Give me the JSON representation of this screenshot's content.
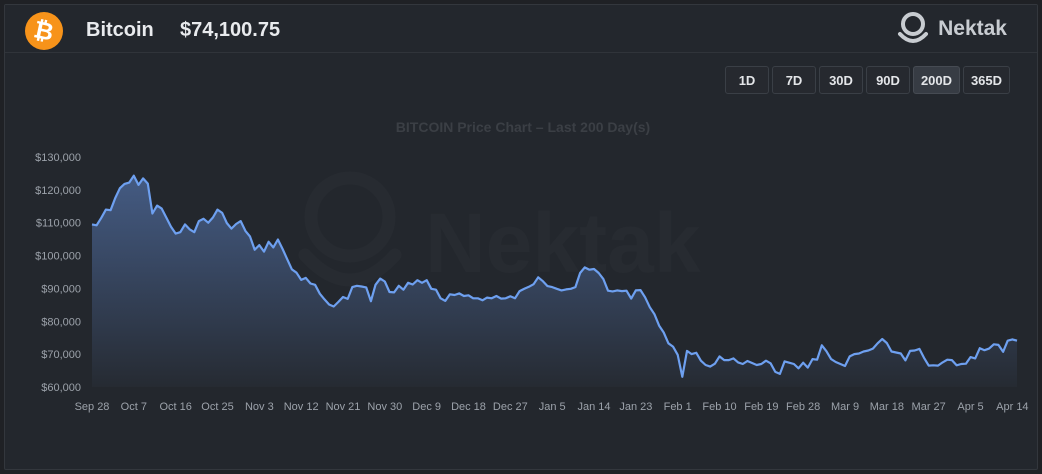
{
  "header": {
    "coin_name": "Bitcoin",
    "coin_symbol_glyph": "₿",
    "price": "$74,100.75",
    "logo_text": "Nektak"
  },
  "range_buttons": [
    {
      "label": "1D",
      "active": false
    },
    {
      "label": "7D",
      "active": false
    },
    {
      "label": "30D",
      "active": false
    },
    {
      "label": "90D",
      "active": false
    },
    {
      "label": "200D",
      "active": true
    },
    {
      "label": "365D",
      "active": false
    }
  ],
  "colors": {
    "accent_orange": "#f7931a",
    "line": "#6ea0f0",
    "background": "#23272d"
  },
  "chart_data": {
    "type": "area",
    "title": "BITCOIN Price Chart – Last 200 Day(s)",
    "watermark": "Nektak",
    "xlabel": "",
    "ylabel": "",
    "ylim": [
      60000,
      130000
    ],
    "yticks": [
      {
        "value": 130000,
        "label": "$130,000"
      },
      {
        "value": 120000,
        "label": "$120,000"
      },
      {
        "value": 110000,
        "label": "$110,000"
      },
      {
        "value": 100000,
        "label": "$100,000"
      },
      {
        "value": 90000,
        "label": "$90,000"
      },
      {
        "value": 80000,
        "label": "$80,000"
      },
      {
        "value": 70000,
        "label": "$70,000"
      },
      {
        "value": 60000,
        "label": "$60,000"
      }
    ],
    "xrange": [
      "2025-09-28",
      "2026-04-15"
    ],
    "xticks": [
      {
        "date": "2025-09-28",
        "label": "Sep 28"
      },
      {
        "date": "2025-10-07",
        "label": "Oct 7"
      },
      {
        "date": "2025-10-16",
        "label": "Oct 16"
      },
      {
        "date": "2025-10-25",
        "label": "Oct 25"
      },
      {
        "date": "2025-11-03",
        "label": "Nov 3"
      },
      {
        "date": "2025-11-12",
        "label": "Nov 12"
      },
      {
        "date": "2025-11-21",
        "label": "Nov 21"
      },
      {
        "date": "2025-11-30",
        "label": "Nov 30"
      },
      {
        "date": "2025-12-09",
        "label": "Dec 9"
      },
      {
        "date": "2025-12-18",
        "label": "Dec 18"
      },
      {
        "date": "2025-12-27",
        "label": "Dec 27"
      },
      {
        "date": "2026-01-05",
        "label": "Jan 5"
      },
      {
        "date": "2026-01-14",
        "label": "Jan 14"
      },
      {
        "date": "2026-01-23",
        "label": "Jan 23"
      },
      {
        "date": "2026-02-01",
        "label": "Feb 1"
      },
      {
        "date": "2026-02-10",
        "label": "Feb 10"
      },
      {
        "date": "2026-02-19",
        "label": "Feb 19"
      },
      {
        "date": "2026-02-28",
        "label": "Feb 28"
      },
      {
        "date": "2026-03-09",
        "label": "Mar 9"
      },
      {
        "date": "2026-03-18",
        "label": "Mar 18"
      },
      {
        "date": "2026-03-27",
        "label": "Mar 27"
      },
      {
        "date": "2026-04-05",
        "label": "Apr 5"
      },
      {
        "date": "2026-04-14",
        "label": "Apr 14"
      }
    ],
    "series": [
      {
        "color": "#6ea0f0",
        "points": [
          [
            "2025-09-28",
            109500
          ],
          [
            "2025-09-29",
            109200
          ],
          [
            "2025-09-30",
            111500
          ],
          [
            "2025-10-01",
            114000
          ],
          [
            "2025-10-02",
            113800
          ],
          [
            "2025-10-03",
            117500
          ],
          [
            "2025-10-04",
            120500
          ],
          [
            "2025-10-05",
            121800
          ],
          [
            "2025-10-06",
            122200
          ],
          [
            "2025-10-07",
            124300
          ],
          [
            "2025-10-08",
            121500
          ],
          [
            "2025-10-09",
            123500
          ],
          [
            "2025-10-10",
            121900
          ],
          [
            "2025-10-11",
            112800
          ],
          [
            "2025-10-12",
            115200
          ],
          [
            "2025-10-13",
            114300
          ],
          [
            "2025-10-14",
            111500
          ],
          [
            "2025-10-15",
            108800
          ],
          [
            "2025-10-16",
            106700
          ],
          [
            "2025-10-17",
            107100
          ],
          [
            "2025-10-18",
            109500
          ],
          [
            "2025-10-19",
            108000
          ],
          [
            "2025-10-20",
            107100
          ],
          [
            "2025-10-21",
            110500
          ],
          [
            "2025-10-22",
            111200
          ],
          [
            "2025-10-23",
            110000
          ],
          [
            "2025-10-24",
            111600
          ],
          [
            "2025-10-25",
            114000
          ],
          [
            "2025-10-26",
            113000
          ],
          [
            "2025-10-27",
            109900
          ],
          [
            "2025-10-28",
            108200
          ],
          [
            "2025-10-29",
            109600
          ],
          [
            "2025-10-30",
            110500
          ],
          [
            "2025-10-31",
            107500
          ],
          [
            "2025-11-01",
            105800
          ],
          [
            "2025-11-02",
            101800
          ],
          [
            "2025-11-03",
            103200
          ],
          [
            "2025-11-04",
            101200
          ],
          [
            "2025-11-05",
            104200
          ],
          [
            "2025-11-06",
            102500
          ],
          [
            "2025-11-07",
            104900
          ],
          [
            "2025-11-08",
            102000
          ],
          [
            "2025-11-09",
            98900
          ],
          [
            "2025-11-10",
            95800
          ],
          [
            "2025-11-11",
            94800
          ],
          [
            "2025-11-12",
            92600
          ],
          [
            "2025-11-13",
            93200
          ],
          [
            "2025-11-14",
            91500
          ],
          [
            "2025-11-15",
            91100
          ],
          [
            "2025-11-16",
            88400
          ],
          [
            "2025-11-17",
            86700
          ],
          [
            "2025-11-18",
            85100
          ],
          [
            "2025-11-19",
            84500
          ],
          [
            "2025-11-20",
            85900
          ],
          [
            "2025-11-21",
            87400
          ],
          [
            "2025-11-22",
            86800
          ],
          [
            "2025-11-23",
            90400
          ],
          [
            "2025-11-24",
            90800
          ],
          [
            "2025-11-25",
            90600
          ],
          [
            "2025-11-26",
            90300
          ],
          [
            "2025-11-27",
            86100
          ],
          [
            "2025-11-28",
            91100
          ],
          [
            "2025-11-29",
            93000
          ],
          [
            "2025-11-30",
            92100
          ],
          [
            "2025-12-01",
            88900
          ],
          [
            "2025-12-02",
            88800
          ],
          [
            "2025-12-03",
            90800
          ],
          [
            "2025-12-04",
            89600
          ],
          [
            "2025-12-05",
            91700
          ],
          [
            "2025-12-06",
            91200
          ],
          [
            "2025-12-07",
            92500
          ],
          [
            "2025-12-08",
            91700
          ],
          [
            "2025-12-09",
            92500
          ],
          [
            "2025-12-10",
            89900
          ],
          [
            "2025-12-11",
            89600
          ],
          [
            "2025-12-12",
            87000
          ],
          [
            "2025-12-13",
            86200
          ],
          [
            "2025-12-14",
            88200
          ],
          [
            "2025-12-15",
            88000
          ],
          [
            "2025-12-16",
            88500
          ],
          [
            "2025-12-17",
            87700
          ],
          [
            "2025-12-18",
            87900
          ],
          [
            "2025-12-19",
            87000
          ],
          [
            "2025-12-20",
            87000
          ],
          [
            "2025-12-21",
            86400
          ],
          [
            "2025-12-22",
            87200
          ],
          [
            "2025-12-23",
            87000
          ],
          [
            "2025-12-24",
            87700
          ],
          [
            "2025-12-25",
            86900
          ],
          [
            "2025-12-26",
            87000
          ],
          [
            "2025-12-27",
            87600
          ],
          [
            "2025-12-28",
            87000
          ],
          [
            "2025-12-29",
            89200
          ],
          [
            "2025-12-30",
            89900
          ],
          [
            "2025-12-31",
            90500
          ],
          [
            "2026-01-01",
            91300
          ],
          [
            "2026-01-02",
            93400
          ],
          [
            "2026-01-03",
            92200
          ],
          [
            "2026-01-04",
            90700
          ],
          [
            "2026-01-05",
            90400
          ],
          [
            "2026-01-06",
            89900
          ],
          [
            "2026-01-07",
            89400
          ],
          [
            "2026-01-08",
            89700
          ],
          [
            "2026-01-09",
            89900
          ],
          [
            "2026-01-10",
            90400
          ],
          [
            "2026-01-11",
            94700
          ],
          [
            "2026-01-12",
            96400
          ],
          [
            "2026-01-13",
            95700
          ],
          [
            "2026-01-14",
            95900
          ],
          [
            "2026-01-15",
            94700
          ],
          [
            "2026-01-16",
            92900
          ],
          [
            "2026-01-17",
            89300
          ],
          [
            "2026-01-18",
            89100
          ],
          [
            "2026-01-19",
            89400
          ],
          [
            "2026-01-20",
            89200
          ],
          [
            "2026-01-21",
            89300
          ],
          [
            "2026-01-22",
            86900
          ],
          [
            "2026-01-23",
            89400
          ],
          [
            "2026-01-24",
            89500
          ],
          [
            "2026-01-25",
            87300
          ],
          [
            "2026-01-26",
            84300
          ],
          [
            "2026-01-27",
            82200
          ],
          [
            "2026-01-28",
            78700
          ],
          [
            "2026-01-29",
            76600
          ],
          [
            "2026-01-30",
            73300
          ],
          [
            "2026-01-31",
            72300
          ],
          [
            "2026-02-01",
            69800
          ],
          [
            "2026-02-02",
            63100
          ],
          [
            "2026-02-03",
            71000
          ],
          [
            "2026-02-04",
            70000
          ],
          [
            "2026-02-05",
            70400
          ],
          [
            "2026-02-06",
            68000
          ],
          [
            "2026-02-07",
            66700
          ],
          [
            "2026-02-08",
            66200
          ],
          [
            "2026-02-09",
            67100
          ],
          [
            "2026-02-10",
            69300
          ],
          [
            "2026-02-11",
            68200
          ],
          [
            "2026-02-12",
            68200
          ],
          [
            "2026-02-13",
            68700
          ],
          [
            "2026-02-14",
            67500
          ],
          [
            "2026-02-15",
            67000
          ],
          [
            "2026-02-16",
            67900
          ],
          [
            "2026-02-17",
            67300
          ],
          [
            "2026-02-18",
            66700
          ],
          [
            "2026-02-19",
            67000
          ],
          [
            "2026-02-20",
            68000
          ],
          [
            "2026-02-21",
            67200
          ],
          [
            "2026-02-22",
            64600
          ],
          [
            "2026-02-23",
            64000
          ],
          [
            "2026-02-24",
            67800
          ],
          [
            "2026-02-25",
            67400
          ],
          [
            "2026-02-26",
            67000
          ],
          [
            "2026-02-27",
            65700
          ],
          [
            "2026-02-28",
            67400
          ],
          [
            "2026-03-01",
            65900
          ],
          [
            "2026-03-02",
            68500
          ],
          [
            "2026-03-03",
            68300
          ],
          [
            "2026-03-04",
            72700
          ],
          [
            "2026-03-05",
            70900
          ],
          [
            "2026-03-06",
            68500
          ],
          [
            "2026-03-07",
            67600
          ],
          [
            "2026-03-08",
            67000
          ],
          [
            "2026-03-09",
            66400
          ],
          [
            "2026-03-10",
            69300
          ],
          [
            "2026-03-11",
            70000
          ],
          [
            "2026-03-12",
            70200
          ],
          [
            "2026-03-13",
            70800
          ],
          [
            "2026-03-14",
            71100
          ],
          [
            "2026-03-15",
            71700
          ],
          [
            "2026-03-16",
            73300
          ],
          [
            "2026-03-17",
            74600
          ],
          [
            "2026-03-18",
            73400
          ],
          [
            "2026-03-19",
            70800
          ],
          [
            "2026-03-20",
            70500
          ],
          [
            "2026-03-21",
            70200
          ],
          [
            "2026-03-22",
            68100
          ],
          [
            "2026-03-23",
            71000
          ],
          [
            "2026-03-24",
            71100
          ],
          [
            "2026-03-25",
            71600
          ],
          [
            "2026-03-26",
            68900
          ],
          [
            "2026-03-27",
            66500
          ],
          [
            "2026-03-28",
            66600
          ],
          [
            "2026-03-29",
            66500
          ],
          [
            "2026-03-30",
            67500
          ],
          [
            "2026-03-31",
            68300
          ],
          [
            "2026-04-01",
            68200
          ],
          [
            "2026-04-02",
            66600
          ],
          [
            "2026-04-03",
            67000
          ],
          [
            "2026-04-04",
            67100
          ],
          [
            "2026-04-05",
            69100
          ],
          [
            "2026-04-06",
            68700
          ],
          [
            "2026-04-07",
            71800
          ],
          [
            "2026-04-08",
            71200
          ],
          [
            "2026-04-09",
            71700
          ],
          [
            "2026-04-10",
            73000
          ],
          [
            "2026-04-11",
            72800
          ],
          [
            "2026-04-12",
            70700
          ],
          [
            "2026-04-13",
            74100
          ],
          [
            "2026-04-14",
            74500
          ],
          [
            "2026-04-15",
            74100
          ]
        ]
      }
    ]
  }
}
